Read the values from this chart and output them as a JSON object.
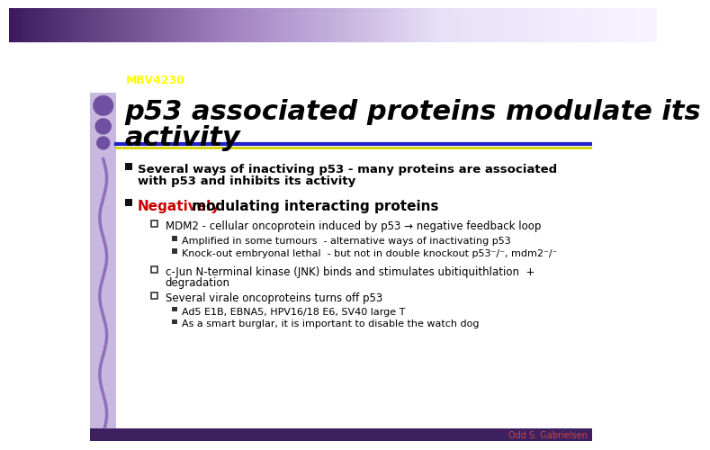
{
  "bg_color": "#ffffff",
  "header_gradient_left": "#3d2060",
  "header_gradient_right": "#e8e0f0",
  "header_label": "MBV4230",
  "header_label_color": "#ffff00",
  "left_bar_color": "#c8b8e0",
  "title_line1": "p53 associated proteins modulate its",
  "title_line2": "activity",
  "title_color": "#000000",
  "divider_color_blue": "#2020cc",
  "divider_color_gold": "#d4d400",
  "bullet_color": "#222222",
  "bullet1_text_line1": "Several ways of inactiving p53 - many proteins are associated",
  "bullet1_text_line2": "with p53 and inhibits its activity",
  "bullet2_prefix": "Negatively",
  "bullet2_prefix_color": "#cc0000",
  "bullet2_rest": " modulating interacting proteins",
  "sub1_text": "MDM2 - cellular oncoprotein induced by p53 → negative feedback loop",
  "sub1a_text": "Amplified in some tumours  - alternative ways of inactivating p53",
  "sub1b_text": "Knock-out embryonal lethal  - but not in double knockout p53⁻/⁻, mdm2⁻/⁻",
  "sub2_text_line1": "c-Jun N-terminal kinase (JNK) binds and stimulates ubitiquithlation  +",
  "sub2_text_line2": "degradation",
  "sub3_text": "Several virale oncoproteins turns off p53",
  "sub3a_text": "Ad5 E1B, EBNA5, HPV16/18 E6, SV40 large T",
  "sub3b_text": "As a smart burglar, it is important to disable the watch dog",
  "footer_text": "Odd S. Gabrielsen",
  "footer_color": "#cc4444",
  "footer_bg": "#3d2060"
}
